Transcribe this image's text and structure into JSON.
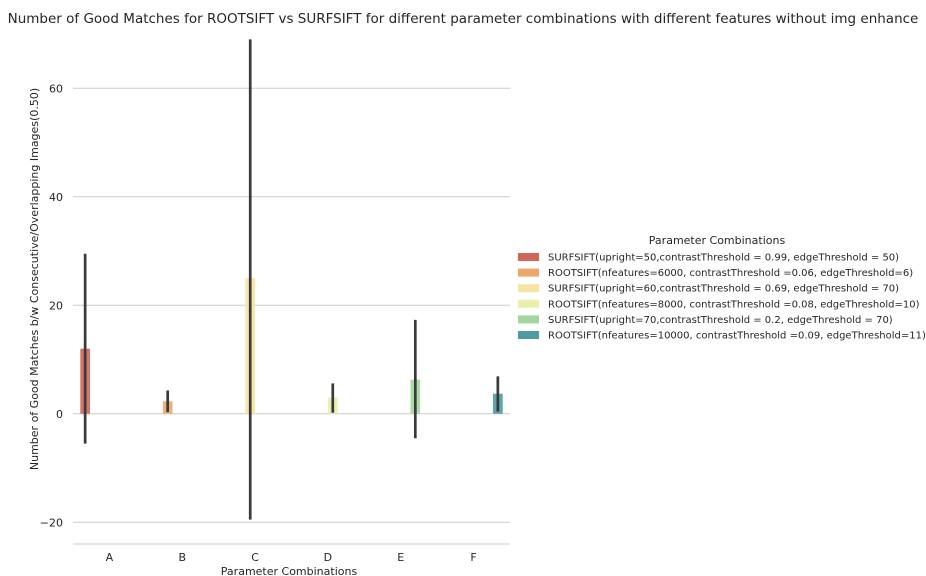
{
  "chart_data": {
    "type": "bar",
    "title": "Number of Good Matches for ROOTSIFT vs SURFSIFT for different parameter combinations with different features without img enhance",
    "xlabel": "Parameter Combinations",
    "ylabel": "Number of Good Matches b/w Consecutive/Overlapping Images(0.50)",
    "categories": [
      "A",
      "B",
      "C",
      "D",
      "E",
      "F"
    ],
    "ylim": [
      -24,
      70
    ],
    "yticks": [
      -20,
      0,
      20,
      40,
      60
    ],
    "ytick_labels": [
      "−20",
      "0",
      "20",
      "40",
      "60"
    ],
    "grid": true,
    "legend": {
      "title": "Parameter Combinations",
      "placement": "right"
    },
    "series": [
      {
        "name": "SURFSIFT(upright=50,contrastThreshold = 0.99, edgeThreshold = 50)",
        "color": "#d0665a",
        "category": "A",
        "value": 12,
        "err_low": -5.5,
        "err_high": 29.5
      },
      {
        "name": "ROOTSIFT(nfeatures=6000, contrastThreshold =0.06, edgeThreshold=6)",
        "color": "#eba76c",
        "category": "B",
        "value": 2.3,
        "err_low": 0.3,
        "err_high": 4.3
      },
      {
        "name": "SURFSIFT(upright=60,contrastThreshold = 0.69, edgeThreshold = 70)",
        "color": "#f7e3a3",
        "category": "C",
        "value": 25,
        "err_low": -19.5,
        "err_high": 69
      },
      {
        "name": "ROOTSIFT(nfeatures=8000, contrastThreshold =0.08, edgeThreshold=10)",
        "color": "#e9efac",
        "category": "D",
        "value": 3,
        "err_low": 0.2,
        "err_high": 5.6
      },
      {
        "name": "SURFSIFT(upright=70,contrastThreshold = 0.2, edgeThreshold = 70)",
        "color": "#a5d6a0",
        "category": "E",
        "value": 6.3,
        "err_low": -4.5,
        "err_high": 17.3
      },
      {
        "name": "ROOTSIFT(nfeatures=10000, contrastThreshold =0.09, edgeThreshold=11)",
        "color": "#4e9ba4",
        "category": "F",
        "value": 3.7,
        "err_low": 0.4,
        "err_high": 6.9
      }
    ]
  }
}
